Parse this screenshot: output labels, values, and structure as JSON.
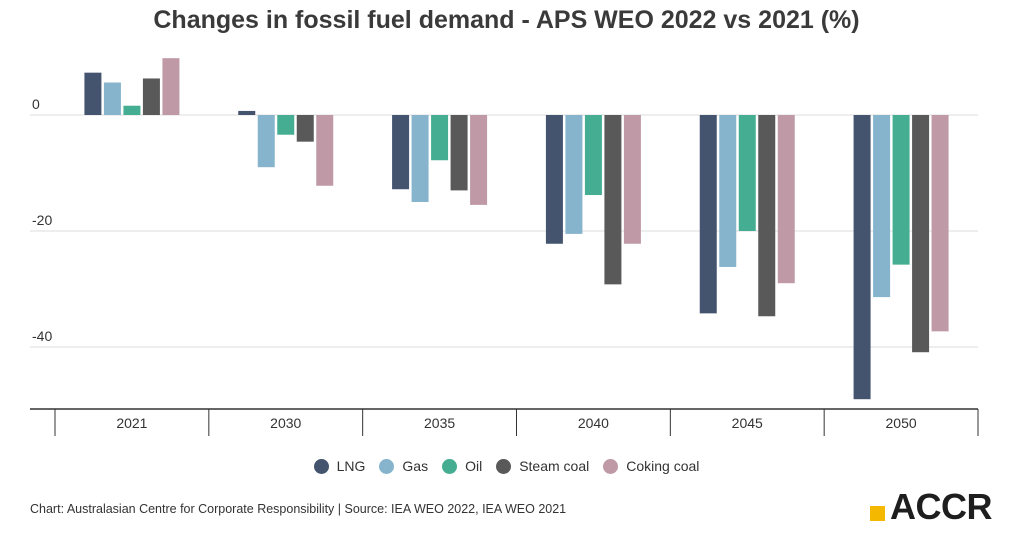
{
  "chart_data": {
    "type": "bar",
    "title": "Changes in fossil fuel demand - APS WEO 2022 vs 2021 (%)",
    "categories": [
      "2021",
      "2030",
      "2035",
      "2040",
      "2045",
      "2050"
    ],
    "series": [
      {
        "name": "LNG",
        "color": "#44546e",
        "values": [
          7.3,
          0.7,
          -12.8,
          -22.2,
          -34.2,
          -49.0
        ]
      },
      {
        "name": "Gas",
        "color": "#86b4cc",
        "values": [
          5.6,
          -9.0,
          -15.0,
          -20.5,
          -26.2,
          -31.4
        ]
      },
      {
        "name": "Oil",
        "color": "#45ae92",
        "values": [
          1.6,
          -3.4,
          -7.8,
          -13.8,
          -20.0,
          -25.8
        ]
      },
      {
        "name": "Steam coal",
        "color": "#595959",
        "values": [
          6.3,
          -4.6,
          -13.0,
          -29.2,
          -34.7,
          -40.9
        ]
      },
      {
        "name": "Coking coal",
        "color": "#bf9aa6",
        "values": [
          9.8,
          -12.2,
          -15.5,
          -22.2,
          -29.0,
          -37.3
        ]
      }
    ],
    "y_ticks": [
      "0",
      "-20",
      "-40"
    ],
    "ylim": [
      -51,
      11
    ],
    "grid": true,
    "legend_position": "bottom"
  },
  "footer": {
    "source": "Chart: Australasian Centre for Corporate Responsibility | Source: IEA WEO 2022, IEA WEO 2021",
    "logo_text": "ACCR",
    "logo_color": "#f5b800"
  }
}
